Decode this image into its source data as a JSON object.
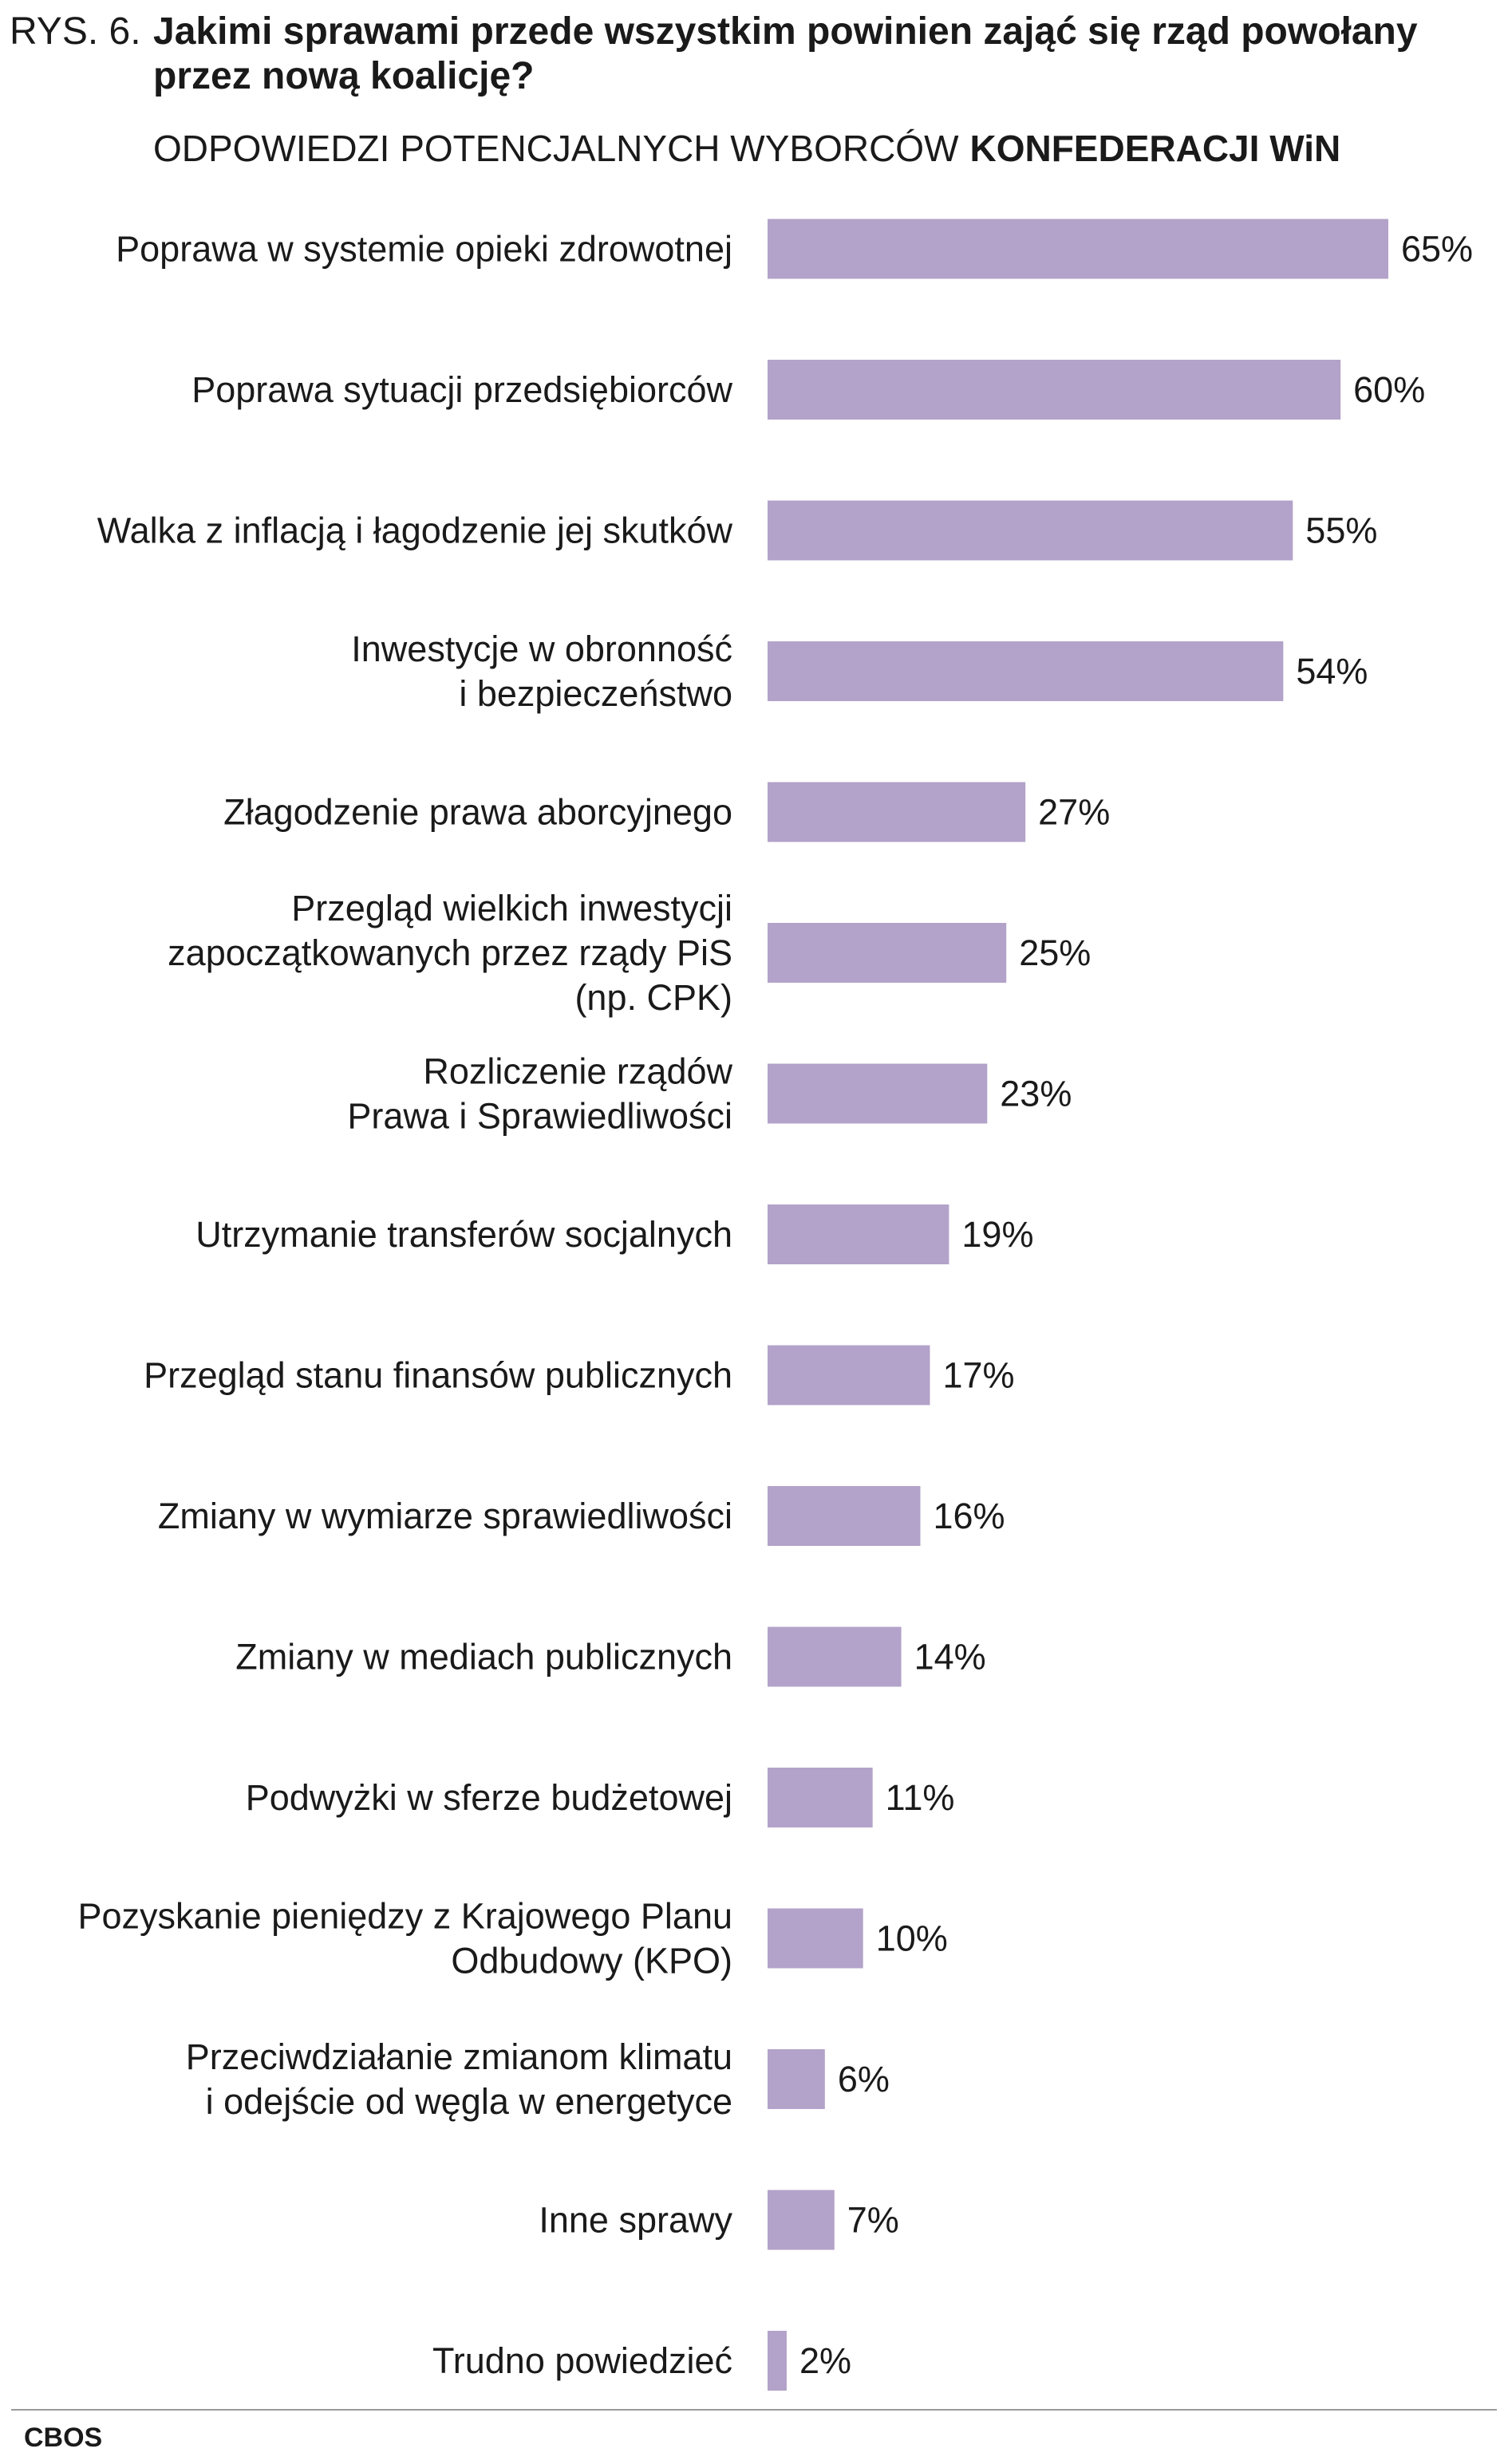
{
  "header": {
    "figure_number": "RYS. 6.",
    "title": "Jakimi sprawami przede wszystkim powinien zająć się rząd powołany przez nową koalicję?",
    "subtitle_prefix": "ODPOWIEDZI POTENCJALNYCH WYBORCÓW",
    "subtitle_bold": "KONFEDERACJI WiN"
  },
  "footer": {
    "brand": "CBOS"
  },
  "colors": {
    "bar": "#b3a2c9",
    "text": "#1a1a1a",
    "rule": "#9a9a9a"
  },
  "chart_data": {
    "type": "bar",
    "orientation": "horizontal",
    "xlim": [
      0,
      65
    ],
    "unit": "%",
    "categories": [
      [
        "Poprawa w systemie opieki zdrowotnej"
      ],
      [
        "Poprawa sytuacji przedsiębiorców"
      ],
      [
        "Walka z inflacją i łagodzenie jej skutków"
      ],
      [
        "Inwestycje w obronność",
        "i bezpieczeństwo"
      ],
      [
        "Złagodzenie prawa aborcyjnego"
      ],
      [
        "Przegląd wielkich inwestycji",
        "zapoczątkowanych przez rządy PiS",
        "(np. CPK)"
      ],
      [
        "Rozliczenie rządów",
        "Prawa i Sprawiedliwości"
      ],
      [
        "Utrzymanie transferów socjalnych"
      ],
      [
        "Przegląd stanu finansów publicznych"
      ],
      [
        "Zmiany w wymiarze sprawiedliwości"
      ],
      [
        "Zmiany w mediach publicznych"
      ],
      [
        "Podwyżki w sferze budżetowej"
      ],
      [
        "Pozyskanie pieniędzy z Krajowego Planu",
        "Odbudowy (KPO)"
      ],
      [
        "Przeciwdziałanie zmianom klimatu",
        "i odejście od węgla w energetyce"
      ],
      [
        "Inne sprawy"
      ],
      [
        "Trudno powiedzieć"
      ]
    ],
    "values": [
      65,
      60,
      55,
      54,
      27,
      25,
      23,
      19,
      17,
      16,
      14,
      11,
      10,
      6,
      7,
      2
    ],
    "value_labels": [
      "65%",
      "60%",
      "55%",
      "54%",
      "27%",
      "25%",
      "23%",
      "19%",
      "17%",
      "16%",
      "14%",
      "11%",
      "10%",
      "6%",
      "7%",
      "2%"
    ]
  }
}
